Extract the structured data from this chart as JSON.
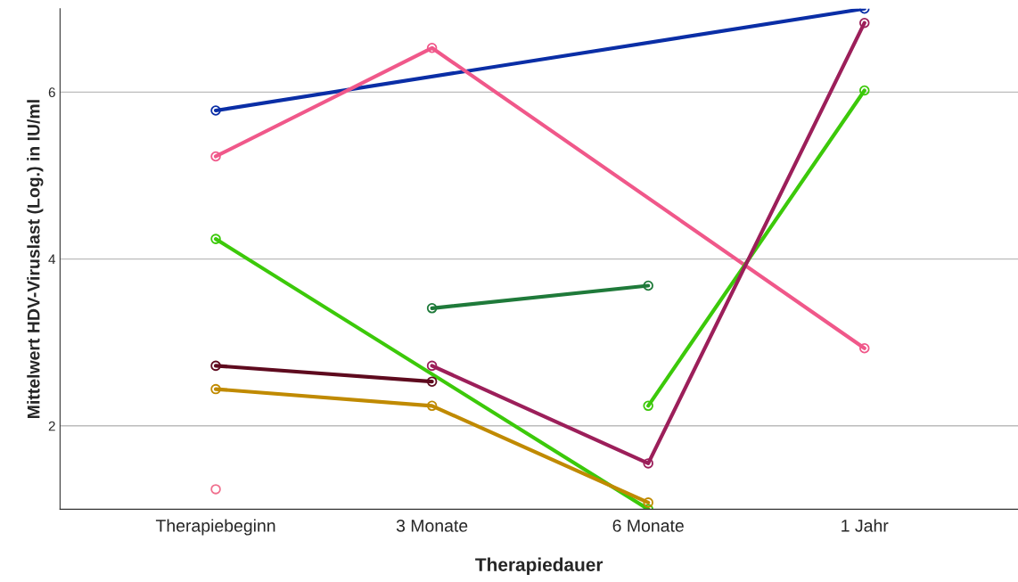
{
  "chart_data": {
    "type": "line",
    "xlabel": "Therapiedauer",
    "ylabel": "Mittelwert HDV-Viruslast (Log.) in IU/ml",
    "categories": [
      "Therapiebeginn",
      "3 Monate",
      "6 Monate",
      "1 Jahr"
    ],
    "ylim": [
      1,
      7
    ],
    "yticks": [
      2,
      4,
      6
    ],
    "grid": "y",
    "marker": "circle",
    "line_style": "solid",
    "legend": false,
    "series": [
      {
        "color": "#0a2ea6",
        "values": [
          5.78,
          null,
          null,
          7.0
        ]
      },
      {
        "color": "#f0588a",
        "values": [
          5.23,
          6.53,
          null,
          2.93
        ]
      },
      {
        "color": "#3cc90a",
        "values": [
          4.24,
          null,
          1.0,
          null
        ]
      },
      {
        "color": "#3cc90a",
        "values": [
          null,
          null,
          2.24,
          6.02
        ]
      },
      {
        "color": "#1f7a3a",
        "values": [
          null,
          3.41,
          3.68,
          null
        ]
      },
      {
        "color": "#5e0a1e",
        "values": [
          2.72,
          2.53,
          null,
          null
        ]
      },
      {
        "color": "#c08a00",
        "values": [
          2.44,
          2.24,
          1.08,
          null
        ]
      },
      {
        "color": "#9c1f5a",
        "values": [
          null,
          2.72,
          1.55,
          6.83
        ]
      },
      {
        "type": "scatter",
        "color": "#f0708e",
        "values": [
          1.24,
          null,
          null,
          null
        ]
      }
    ]
  }
}
